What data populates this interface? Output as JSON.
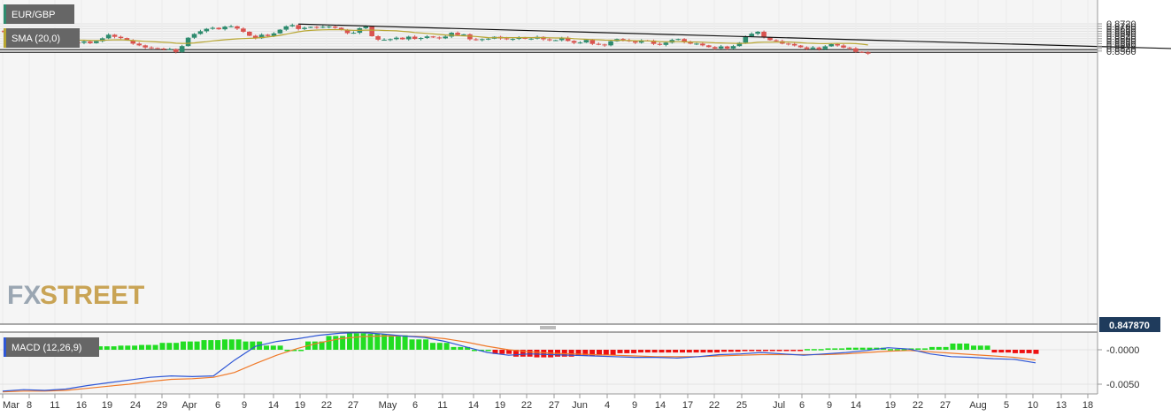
{
  "colors": {
    "up": "#2e8b6e",
    "down": "#d9534f",
    "sma": "#b8a632",
    "macd_line": "#2f57d6",
    "signal_line": "#f07a2a",
    "hist_up": "#22dd22",
    "hist_down": "#ee1111",
    "price_tag": "#1f3b5c",
    "legend_bg": "#666666"
  },
  "chart_data": {
    "type": "candlestick",
    "symbol": "EUR/GBP",
    "last_price_label": "0.847870",
    "price_axis": {
      "ylim": [
        0.8479,
        0.873
      ],
      "ticks": [
        "0.8720",
        "0.8700",
        "0.8680",
        "0.8660",
        "0.8640",
        "0.8620",
        "0.8600",
        "0.8580",
        "0.8560",
        "0.8540",
        "0.8520",
        "0.8500"
      ]
    },
    "macd_axis": {
      "ticks": [
        "-0.0000",
        "-0.0050"
      ]
    },
    "x_axis": {
      "labels": [
        "Mar",
        "8",
        "11",
        "16",
        "19",
        "24",
        "29",
        "Apr",
        "6",
        "9",
        "14",
        "19",
        "22",
        "27",
        "May",
        "6",
        "11",
        "14",
        "19",
        "22",
        "27",
        "Jun",
        "4",
        "9",
        "14",
        "17",
        "22",
        "25",
        "Jul",
        "6",
        "9",
        "14",
        "19",
        "22",
        "27",
        "Aug",
        "5",
        "10",
        "13",
        "18"
      ],
      "month_labels": [
        "Mar",
        "Apr",
        "May",
        "Jun",
        "Jul",
        "Aug"
      ]
    },
    "horizontal_lines": [
      0.8511,
      0.849
    ],
    "trendline": {
      "start_index": 48,
      "start_value": 0.8718,
      "end_index": 185,
      "end_value": 0.8528
    },
    "candles_open": [
      0.8665,
      0.8652,
      0.863,
      0.861,
      0.8582,
      0.8575,
      0.857,
      0.8575,
      0.8568,
      0.8585,
      0.8576,
      0.8592,
      0.857,
      0.8567,
      0.8578,
      0.8564,
      0.858,
      0.8603,
      0.8632,
      0.8615,
      0.8605,
      0.8588,
      0.856,
      0.8546,
      0.8529,
      0.8525,
      0.852,
      0.8515,
      0.8515,
      0.8493,
      0.854,
      0.8608,
      0.8638,
      0.866,
      0.868,
      0.8688,
      0.8676,
      0.8697,
      0.87,
      0.8682,
      0.8656,
      0.8624,
      0.8604,
      0.8632,
      0.8622,
      0.8643,
      0.8673,
      0.87,
      0.871,
      0.8678,
      0.8688,
      0.8695,
      0.869,
      0.8696,
      0.8698,
      0.8688,
      0.867,
      0.8645,
      0.8648,
      0.8685,
      0.8698,
      0.862,
      0.8592,
      0.8592,
      0.8596,
      0.8608,
      0.8595,
      0.8616,
      0.8598,
      0.8606,
      0.8618,
      0.861,
      0.8603,
      0.8617,
      0.8648,
      0.863,
      0.8635,
      0.8595,
      0.859,
      0.8596,
      0.86,
      0.8615,
      0.8602,
      0.8595,
      0.8598,
      0.861,
      0.8599,
      0.86,
      0.8614,
      0.8595,
      0.8587,
      0.8588,
      0.8607,
      0.8582,
      0.8567,
      0.8569,
      0.859,
      0.8558,
      0.8553,
      0.8546,
      0.8579,
      0.8597,
      0.8588,
      0.8579,
      0.8568,
      0.8586,
      0.8585,
      0.8558,
      0.855,
      0.8568,
      0.859,
      0.8597,
      0.8572,
      0.856,
      0.856,
      0.8546,
      0.8532,
      0.852,
      0.8537,
      0.852,
      0.854,
      0.8568,
      0.8618,
      0.864,
      0.8656,
      0.861,
      0.8588,
      0.858,
      0.856,
      0.8557,
      0.8545,
      0.853,
      0.8517,
      0.8529,
      0.8515,
      0.8538,
      0.8556,
      0.8545,
      0.8528,
      0.8522,
      0.8494,
      0.849
    ],
    "candles_close": [
      0.8652,
      0.863,
      0.861,
      0.8582,
      0.8575,
      0.857,
      0.8575,
      0.8568,
      0.8585,
      0.8576,
      0.8592,
      0.857,
      0.8567,
      0.8578,
      0.8564,
      0.858,
      0.8603,
      0.8632,
      0.8615,
      0.8605,
      0.8588,
      0.856,
      0.8546,
      0.8529,
      0.8525,
      0.852,
      0.8515,
      0.8515,
      0.8493,
      0.854,
      0.8608,
      0.8638,
      0.866,
      0.868,
      0.8688,
      0.8676,
      0.8697,
      0.87,
      0.8682,
      0.8656,
      0.8624,
      0.8604,
      0.8632,
      0.8622,
      0.8643,
      0.8673,
      0.87,
      0.871,
      0.8678,
      0.8688,
      0.8695,
      0.869,
      0.8696,
      0.8698,
      0.8688,
      0.867,
      0.8645,
      0.8648,
      0.8685,
      0.8698,
      0.862,
      0.8592,
      0.8592,
      0.8596,
      0.8608,
      0.8595,
      0.8616,
      0.8598,
      0.8606,
      0.8618,
      0.861,
      0.8603,
      0.8617,
      0.8648,
      0.863,
      0.8635,
      0.8595,
      0.859,
      0.8596,
      0.86,
      0.8615,
      0.8602,
      0.8595,
      0.8598,
      0.861,
      0.8599,
      0.86,
      0.8614,
      0.8595,
      0.8587,
      0.8588,
      0.8607,
      0.8582,
      0.8567,
      0.8569,
      0.859,
      0.8558,
      0.8553,
      0.8546,
      0.8579,
      0.8597,
      0.8588,
      0.8579,
      0.8568,
      0.8586,
      0.8585,
      0.8558,
      0.855,
      0.8568,
      0.859,
      0.8597,
      0.8572,
      0.856,
      0.856,
      0.8546,
      0.8532,
      0.852,
      0.8537,
      0.852,
      0.854,
      0.8568,
      0.8618,
      0.864,
      0.8656,
      0.861,
      0.8588,
      0.858,
      0.856,
      0.8557,
      0.8545,
      0.853,
      0.8517,
      0.8529,
      0.8515,
      0.8538,
      0.8556,
      0.8545,
      0.8528,
      0.8522,
      0.8494,
      0.849,
      0.8479
    ],
    "sma_label": "SMA (20,0)",
    "macd_label": "MACD (12,26,9)",
    "macd_hist": [
      0.0005,
      0.0006,
      0.0007,
      0.001,
      0.0012,
      0.0014,
      0.0015,
      0.0012,
      0.0006,
      0.0,
      0.0012,
      0.002,
      0.0024,
      0.0023,
      0.0021,
      0.0015,
      0.001,
      0.0004,
      0.0,
      -0.0006,
      -0.001,
      -0.0011,
      -0.001,
      -0.0009,
      -0.0008,
      -0.0005,
      -0.0004,
      -0.0004,
      -0.0004,
      -0.0004,
      -0.0003,
      -0.0002,
      -0.0001,
      -0.0001,
      0.0001,
      0.0002,
      0.0003,
      0.0003,
      0.0001,
      0.0002,
      0.0004,
      0.0009,
      0.0006,
      -0.0004,
      -0.0005,
      -0.0006,
      -0.0006,
      -0.0007
    ]
  }
}
